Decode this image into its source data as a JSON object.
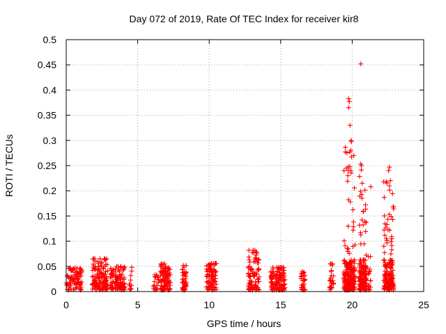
{
  "chart_data": {
    "type": "scatter",
    "title": "Day 072 of 2019, Rate Of TEC Index for receiver kir8",
    "xlabel": "GPS time / hours",
    "ylabel": "ROTI / TECUs",
    "xlim": [
      0,
      25
    ],
    "ylim": [
      0,
      0.5
    ],
    "xticks": [
      0,
      5,
      10,
      15,
      20,
      25
    ],
    "yticks": [
      0,
      0.05,
      0.1,
      0.15,
      0.2,
      0.25,
      0.3,
      0.35,
      0.4,
      0.45,
      0.5
    ],
    "grid": true,
    "marker": "+",
    "color": "#ff0000",
    "clusters": [
      {
        "x_start": 0.0,
        "x_end": 1.1,
        "y_max": 0.047,
        "n": 90
      },
      {
        "x_start": 1.8,
        "x_end": 2.9,
        "y_max": 0.065,
        "n": 130
      },
      {
        "x_start": 3.1,
        "x_end": 4.1,
        "y_max": 0.05,
        "n": 110
      },
      {
        "x_start": 4.4,
        "x_end": 4.6,
        "y_max": 0.048,
        "n": 12
      },
      {
        "x_start": 6.1,
        "x_end": 6.5,
        "y_max": 0.033,
        "n": 20
      },
      {
        "x_start": 6.6,
        "x_end": 7.3,
        "y_max": 0.055,
        "n": 90
      },
      {
        "x_start": 8.1,
        "x_end": 8.4,
        "y_max": 0.052,
        "n": 45
      },
      {
        "x_start": 9.8,
        "x_end": 10.5,
        "y_max": 0.056,
        "n": 90
      },
      {
        "x_start": 12.7,
        "x_end": 13.5,
        "y_max": 0.082,
        "n": 90
      },
      {
        "x_start": 14.3,
        "x_end": 15.3,
        "y_max": 0.048,
        "n": 120
      },
      {
        "x_start": 16.4,
        "x_end": 16.7,
        "y_max": 0.04,
        "n": 30
      },
      {
        "x_start": 18.4,
        "x_end": 18.7,
        "y_max": 0.055,
        "n": 25
      },
      {
        "x_start": 19.4,
        "x_end": 20.2,
        "y_max": 0.3,
        "n": 220
      },
      {
        "x_start": 20.5,
        "x_end": 21.0,
        "y_max": 0.255,
        "n": 160
      },
      {
        "x_start": 21.1,
        "x_end": 21.3,
        "y_max": 0.07,
        "n": 15
      },
      {
        "x_start": 22.2,
        "x_end": 22.9,
        "y_max": 0.22,
        "n": 170
      }
    ],
    "highlights": [
      {
        "x": 20.6,
        "y": 0.452
      },
      {
        "x": 19.75,
        "y": 0.383
      },
      {
        "x": 19.8,
        "y": 0.377
      },
      {
        "x": 19.75,
        "y": 0.365
      },
      {
        "x": 19.85,
        "y": 0.33
      },
      {
        "x": 20.6,
        "y": 0.253
      },
      {
        "x": 20.65,
        "y": 0.25
      },
      {
        "x": 22.6,
        "y": 0.247
      },
      {
        "x": 22.55,
        "y": 0.24
      },
      {
        "x": 19.6,
        "y": 0.245
      },
      {
        "x": 19.7,
        "y": 0.23
      },
      {
        "x": 21.3,
        "y": 0.208
      },
      {
        "x": 22.6,
        "y": 0.21
      },
      {
        "x": 20.7,
        "y": 0.215
      }
    ]
  }
}
